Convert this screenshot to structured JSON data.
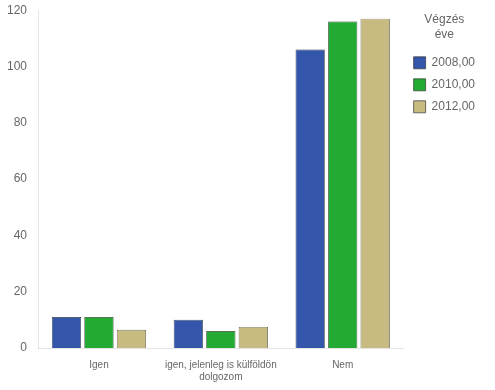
{
  "chart_data": {
    "type": "bar",
    "categories": [
      "Igen",
      "igen, jelenleg is külföldön\ndolgozom",
      "Nem"
    ],
    "series": [
      {
        "name": "2008,00",
        "color": "#3355aa",
        "values": [
          11,
          10,
          106
        ]
      },
      {
        "name": "2010,00",
        "color": "#22aa33",
        "values": [
          11,
          6,
          116
        ]
      },
      {
        "name": "2012,00",
        "color": "#c8bb82",
        "values": [
          6.5,
          7.5,
          117
        ]
      }
    ],
    "ylim": [
      0,
      120
    ],
    "yticks": [
      0,
      20,
      40,
      60,
      80,
      100,
      120
    ],
    "grid": false,
    "legend": "right",
    "legend_title": "Végzés\néve"
  }
}
